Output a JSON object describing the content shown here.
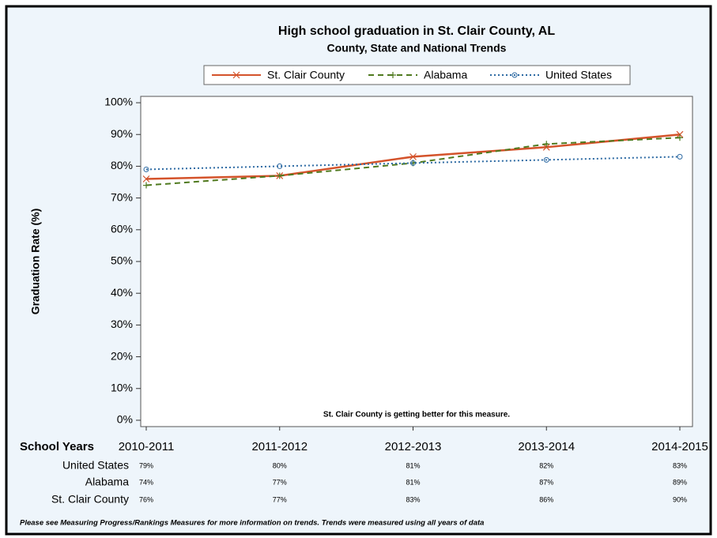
{
  "chart_data": {
    "type": "line",
    "title": "High school graduation in St. Clair County, AL",
    "subtitle": "County, State and National Trends",
    "y_label": "Graduation Rate (%)",
    "annotation": "St. Clair County is getting better for this measure.",
    "table_header": "School Years",
    "footnote": "Please see Measuring Progress/Rankings Measures for more information on trends. Trends were measured using all years of data",
    "categories": [
      "2010-2011",
      "2011-2012",
      "2012-2013",
      "2013-2014",
      "2014-2015"
    ],
    "series": [
      {
        "name": "St. Clair County",
        "color": "#d4532b",
        "line_style": "solid",
        "marker": "x",
        "values": [
          76,
          77,
          83,
          86,
          90
        ],
        "value_labels": [
          "76%",
          "77%",
          "83%",
          "86%",
          "90%"
        ]
      },
      {
        "name": "Alabama",
        "color": "#4f7a1f",
        "line_style": "dashed",
        "marker": "+",
        "values": [
          74,
          77,
          81,
          87,
          89
        ],
        "value_labels": [
          "74%",
          "77%",
          "81%",
          "87%",
          "89%"
        ]
      },
      {
        "name": "United States",
        "color": "#2d6aa3",
        "line_style": "dotted",
        "marker": "o",
        "values": [
          79,
          80,
          81,
          82,
          83
        ],
        "value_labels": [
          "79%",
          "80%",
          "81%",
          "82%",
          "83%"
        ]
      }
    ],
    "ylim": [
      -2,
      102
    ],
    "yticks": [
      {
        "value": 0,
        "label": "0%"
      },
      {
        "value": 10,
        "label": "10%"
      },
      {
        "value": 20,
        "label": "20%"
      },
      {
        "value": 30,
        "label": "30%"
      },
      {
        "value": 40,
        "label": "40%"
      },
      {
        "value": 50,
        "label": "50%"
      },
      {
        "value": 60,
        "label": "60%"
      },
      {
        "value": 70,
        "label": "70%"
      },
      {
        "value": 80,
        "label": "80%"
      },
      {
        "value": 90,
        "label": "90%"
      },
      {
        "value": 100,
        "label": "100%"
      }
    ],
    "grid": false
  }
}
